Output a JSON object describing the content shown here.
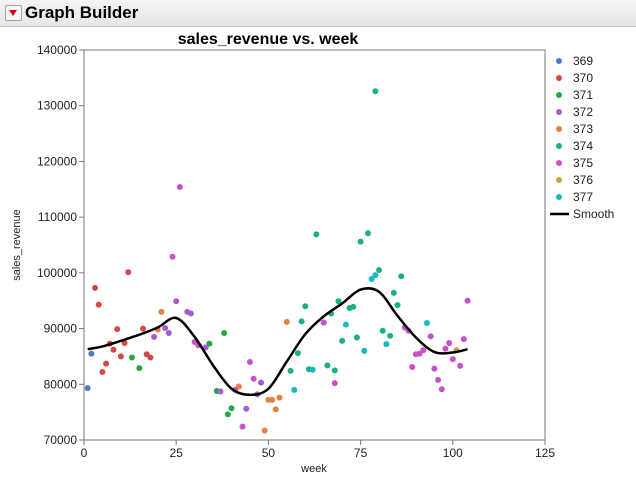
{
  "app": {
    "title": "Graph Builder",
    "menu_icon": "red-disclosure-triangle-icon"
  },
  "chart_data": {
    "type": "scatter",
    "title": "sales_revenue vs. week",
    "xlabel": "week",
    "ylabel": "sales_revenue",
    "xlim": [
      0,
      125
    ],
    "ylim": [
      70000,
      140000
    ],
    "xticks": [
      0,
      25,
      50,
      75,
      100,
      125
    ],
    "yticks": [
      70000,
      80000,
      90000,
      100000,
      110000,
      120000,
      130000,
      140000
    ],
    "x_tick_labels": [
      "0",
      "25",
      "50",
      "75",
      "100",
      "125"
    ],
    "y_tick_labels": [
      "70000",
      "80000",
      "90000",
      "100000",
      "110000",
      "120000",
      "130000",
      "140000"
    ],
    "grid": false,
    "legend_position": "right",
    "series": [
      {
        "name": "369",
        "color": "#4e79c7",
        "points": [
          [
            1,
            79300
          ],
          [
            2,
            85500
          ]
        ]
      },
      {
        "name": "370",
        "color": "#d6474a",
        "points": [
          [
            3,
            97300
          ],
          [
            4,
            94300
          ],
          [
            5,
            82200
          ],
          [
            6,
            83700
          ],
          [
            7,
            87300
          ],
          [
            8,
            86200
          ],
          [
            9,
            89900
          ],
          [
            10,
            85000
          ],
          [
            11,
            87400
          ],
          [
            12,
            100100
          ],
          [
            16,
            90000
          ],
          [
            17,
            85400
          ],
          [
            18,
            84800
          ]
        ]
      },
      {
        "name": "371",
        "color": "#21a844",
        "points": [
          [
            13,
            84800
          ],
          [
            15,
            82900
          ],
          [
            34,
            87300
          ],
          [
            36,
            78800
          ],
          [
            38,
            89200
          ],
          [
            39,
            74600
          ],
          [
            40,
            75700
          ]
        ]
      },
      {
        "name": "372",
        "color": "#a35cd4",
        "points": [
          [
            19,
            88500
          ],
          [
            22,
            90100
          ],
          [
            23,
            89200
          ],
          [
            25,
            94900
          ],
          [
            28,
            93000
          ],
          [
            29,
            92700
          ],
          [
            33,
            86600
          ],
          [
            37,
            78700
          ],
          [
            44,
            75600
          ],
          [
            47,
            78200
          ],
          [
            48,
            80300
          ]
        ]
      },
      {
        "name": "373",
        "color": "#e28143",
        "points": [
          [
            20,
            89800
          ],
          [
            21,
            93000
          ],
          [
            42,
            79600
          ],
          [
            49,
            71700
          ],
          [
            50,
            77200
          ],
          [
            51,
            77200
          ],
          [
            52,
            75500
          ],
          [
            53,
            77600
          ],
          [
            55,
            91200
          ]
        ]
      },
      {
        "name": "374",
        "color": "#19b086",
        "points": [
          [
            56,
            82400
          ],
          [
            58,
            85600
          ],
          [
            59,
            91300
          ],
          [
            60,
            94000
          ],
          [
            61,
            82700
          ],
          [
            63,
            106900
          ],
          [
            65,
            91100
          ],
          [
            66,
            83400
          ],
          [
            67,
            92700
          ],
          [
            68,
            82500
          ],
          [
            69,
            94900
          ],
          [
            70,
            87800
          ],
          [
            72,
            93700
          ],
          [
            73,
            93900
          ],
          [
            74,
            88400
          ],
          [
            75,
            105600
          ],
          [
            77,
            107100
          ],
          [
            79,
            132600
          ],
          [
            80,
            100500
          ],
          [
            81,
            89600
          ],
          [
            83,
            88700
          ],
          [
            84,
            96400
          ],
          [
            85,
            94200
          ],
          [
            86,
            99400
          ]
        ]
      },
      {
        "name": "375",
        "color": "#c751c9",
        "points": [
          [
            24,
            102900
          ],
          [
            26,
            115400
          ],
          [
            30,
            87600
          ],
          [
            31,
            87000
          ],
          [
            41,
            79000
          ],
          [
            43,
            72400
          ],
          [
            45,
            84000
          ],
          [
            46,
            81000
          ],
          [
            65,
            91100
          ],
          [
            68,
            80200
          ],
          [
            87,
            90200
          ],
          [
            88,
            89600
          ],
          [
            89,
            83100
          ],
          [
            90,
            85400
          ],
          [
            91,
            85500
          ],
          [
            92,
            86100
          ],
          [
            94,
            88600
          ],
          [
            95,
            82800
          ],
          [
            96,
            80800
          ],
          [
            97,
            79100
          ],
          [
            98,
            86400
          ],
          [
            99,
            87400
          ],
          [
            100,
            84500
          ],
          [
            102,
            83300
          ],
          [
            103,
            88100
          ],
          [
            104,
            95000
          ]
        ]
      },
      {
        "name": "376",
        "color": "#c7a53d",
        "points": [
          [
            101,
            86100
          ]
        ]
      },
      {
        "name": "377",
        "color": "#18b8c7",
        "points": [
          [
            57,
            79000
          ],
          [
            62,
            82600
          ],
          [
            71,
            90700
          ],
          [
            76,
            86000
          ],
          [
            78,
            98900
          ],
          [
            79,
            99600
          ],
          [
            82,
            87200
          ],
          [
            93,
            91000
          ]
        ]
      }
    ],
    "smooth": {
      "name": "Smooth",
      "color": "#000000",
      "x": [
        1,
        5,
        10,
        15,
        20,
        25,
        30,
        35,
        40,
        45,
        50,
        55,
        60,
        65,
        70,
        75,
        80,
        85,
        90,
        95,
        100,
        104
      ],
      "y": [
        86300,
        86800,
        87800,
        88900,
        90200,
        91900,
        88500,
        83400,
        79200,
        78100,
        79200,
        84100,
        89000,
        92200,
        94500,
        97000,
        96600,
        92300,
        88400,
        85800,
        85700,
        86300
      ]
    }
  }
}
